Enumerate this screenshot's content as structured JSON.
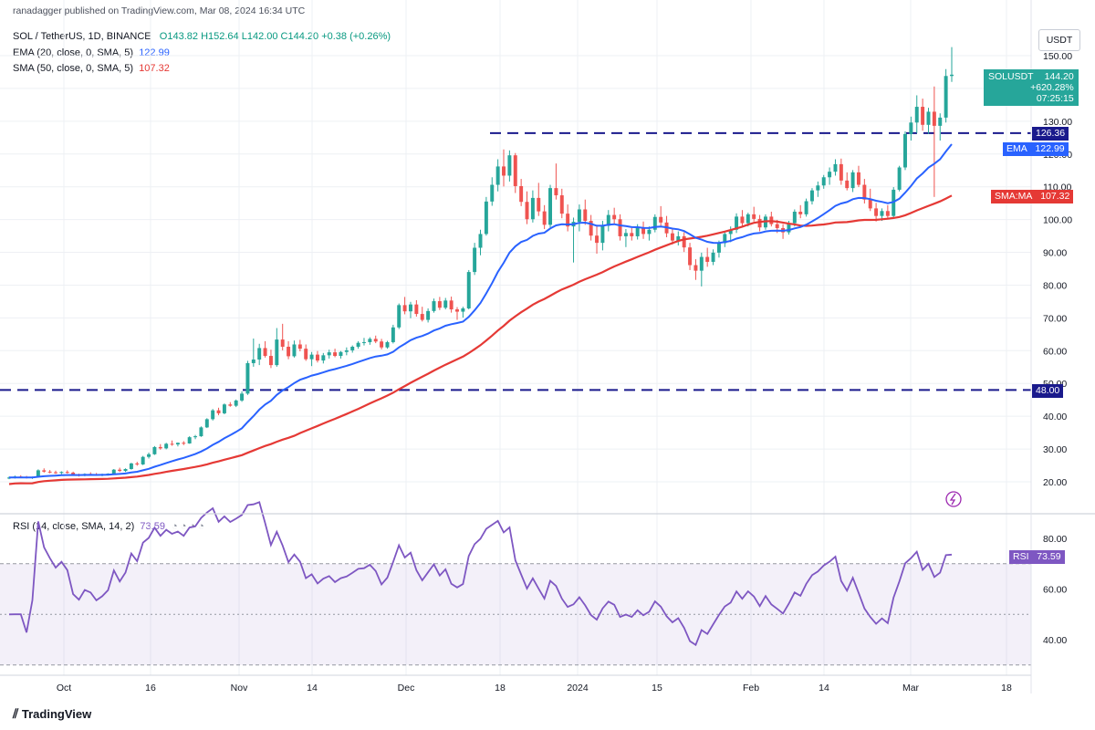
{
  "byline": "ranadagger published on TradingView.com, Mar 08, 2024 16:34 UTC",
  "symbol": {
    "name": "SOL / TetherUS, 1D, BINANCE",
    "o": "O143.82",
    "h": "H152.64",
    "l": "L142.00",
    "c": "C144.20",
    "change": "+0.38 (+0.26%)"
  },
  "ema_legend": {
    "label": "EMA (20, close, 0, SMA, 5)",
    "value": "122.99"
  },
  "sma_legend": {
    "label": "SMA (50, close, 0, SMA, 5)",
    "value": "107.32"
  },
  "rsi_legend": {
    "label": "RSI (14, close, SMA, 14, 2)",
    "value": "73.59"
  },
  "currency": "USDT",
  "price_tag": {
    "symbol": "SOLUSDT",
    "price": "144.20",
    "pct": "+620.28%",
    "countdown": "07:25:15"
  },
  "level_tags": {
    "upper": "126.36",
    "lower": "48.00"
  },
  "ema_tag": {
    "label": "EMA",
    "value": "122.99"
  },
  "sma_tag": {
    "label": "SMA:MA",
    "value": "107.32"
  },
  "rsi_tag": {
    "label": "RSI",
    "value": "73.59"
  },
  "footer": "TradingView",
  "colors": {
    "up": "#26a69a",
    "down": "#ef5350",
    "ema": "#2962ff",
    "sma": "#e53935",
    "rsi": "#7e57c2",
    "level": "#1a1a8c"
  },
  "chart_data": {
    "type": "candlestick",
    "y_ticks": [
      "150.00",
      "140.00",
      "130.00",
      "120.00",
      "110.00",
      "100.00",
      "90.00",
      "80.00",
      "70.00",
      "60.00",
      "50.00",
      "40.00",
      "30.00",
      "20.00"
    ],
    "x_ticks": [
      "Oct",
      "16",
      "Nov",
      "14",
      "Dec",
      "18",
      "2024",
      "15",
      "Feb",
      "14",
      "Mar",
      "18"
    ],
    "horizontal_levels": [
      126.36,
      48.0
    ],
    "rsi_ticks": [
      "80.00",
      "60.00",
      "40.00"
    ],
    "rsi_band": [
      30,
      70
    ],
    "ohlc": [
      [
        21.0,
        21.6,
        20.8,
        21.3
      ],
      [
        21.3,
        21.9,
        21.0,
        21.6
      ],
      [
        21.6,
        22.0,
        21.2,
        21.5
      ],
      [
        21.5,
        21.8,
        21.0,
        21.2
      ],
      [
        21.2,
        21.6,
        20.9,
        21.4
      ],
      [
        21.4,
        23.8,
        21.3,
        23.5
      ],
      [
        23.5,
        24.1,
        22.8,
        23.1
      ],
      [
        23.1,
        23.6,
        22.6,
        22.9
      ],
      [
        22.9,
        23.4,
        22.4,
        22.7
      ],
      [
        22.7,
        23.2,
        22.3,
        23.0
      ],
      [
        23.0,
        23.5,
        22.5,
        22.8
      ],
      [
        22.8,
        23.1,
        21.9,
        22.1
      ],
      [
        22.1,
        22.5,
        21.6,
        21.9
      ],
      [
        21.9,
        22.6,
        21.7,
        22.4
      ],
      [
        22.4,
        22.9,
        22.0,
        22.3
      ],
      [
        22.3,
        22.7,
        21.8,
        22.0
      ],
      [
        22.0,
        22.5,
        21.7,
        22.2
      ],
      [
        22.2,
        22.6,
        21.9,
        22.5
      ],
      [
        22.5,
        23.9,
        22.3,
        23.7
      ],
      [
        23.7,
        24.3,
        23.0,
        23.3
      ],
      [
        23.3,
        24.1,
        23.0,
        23.9
      ],
      [
        23.9,
        25.8,
        23.7,
        25.6
      ],
      [
        25.6,
        26.1,
        24.9,
        25.3
      ],
      [
        25.3,
        27.9,
        25.1,
        27.6
      ],
      [
        27.6,
        28.9,
        27.1,
        28.4
      ],
      [
        28.4,
        30.9,
        28.2,
        30.6
      ],
      [
        30.6,
        31.5,
        29.8,
        30.2
      ],
      [
        30.2,
        31.9,
        29.9,
        31.6
      ],
      [
        31.6,
        32.6,
        31.0,
        31.4
      ],
      [
        31.4,
        32.0,
        30.8,
        31.9
      ],
      [
        31.9,
        32.4,
        31.2,
        31.7
      ],
      [
        31.7,
        33.9,
        31.6,
        33.6
      ],
      [
        33.6,
        34.3,
        33.0,
        33.9
      ],
      [
        33.9,
        36.9,
        33.7,
        36.6
      ],
      [
        36.6,
        39.4,
        36.4,
        39.1
      ],
      [
        39.1,
        42.2,
        38.7,
        41.8
      ],
      [
        41.8,
        42.6,
        40.3,
        40.9
      ],
      [
        40.9,
        43.9,
        40.6,
        43.6
      ],
      [
        43.6,
        44.3,
        42.9,
        43.2
      ],
      [
        43.2,
        45.1,
        42.8,
        44.8
      ],
      [
        44.8,
        47.6,
        44.4,
        46.9
      ],
      [
        46.9,
        56.9,
        46.5,
        56.2
      ],
      [
        56.2,
        63.7,
        55.1,
        57.3
      ],
      [
        57.3,
        62.1,
        55.6,
        60.8
      ],
      [
        60.8,
        62.9,
        57.9,
        58.4
      ],
      [
        58.4,
        60.3,
        54.7,
        55.6
      ],
      [
        55.6,
        66.9,
        55.1,
        63.4
      ],
      [
        63.4,
        68.2,
        60.1,
        61.2
      ],
      [
        61.2,
        62.9,
        57.4,
        58.3
      ],
      [
        58.3,
        63.1,
        57.9,
        61.9
      ],
      [
        61.9,
        63.3,
        59.8,
        60.6
      ],
      [
        60.6,
        61.9,
        56.9,
        57.4
      ],
      [
        57.4,
        59.6,
        55.3,
        58.8
      ],
      [
        58.8,
        59.9,
        56.4,
        57.0
      ],
      [
        57.0,
        59.3,
        56.1,
        58.6
      ],
      [
        58.6,
        60.3,
        57.6,
        59.5
      ],
      [
        59.5,
        60.6,
        58.0,
        58.4
      ],
      [
        58.4,
        59.9,
        57.6,
        59.6
      ],
      [
        59.6,
        61.0,
        58.6,
        60.1
      ],
      [
        60.1,
        61.6,
        59.4,
        61.2
      ],
      [
        61.2,
        62.9,
        60.6,
        62.4
      ],
      [
        62.4,
        63.9,
        61.6,
        62.6
      ],
      [
        62.6,
        64.1,
        61.8,
        63.6
      ],
      [
        63.6,
        64.6,
        62.3,
        62.8
      ],
      [
        62.8,
        63.6,
        60.4,
        61.0
      ],
      [
        61.0,
        63.0,
        60.6,
        62.6
      ],
      [
        62.6,
        67.9,
        62.2,
        67.1
      ],
      [
        67.1,
        74.4,
        66.6,
        73.9
      ],
      [
        73.9,
        76.4,
        71.1,
        72.0
      ],
      [
        72.0,
        74.9,
        69.9,
        74.1
      ],
      [
        74.1,
        75.4,
        70.4,
        71.2
      ],
      [
        71.2,
        73.4,
        68.9,
        69.4
      ],
      [
        69.4,
        72.9,
        68.6,
        72.1
      ],
      [
        72.1,
        75.9,
        71.6,
        75.1
      ],
      [
        75.1,
        76.4,
        72.4,
        73.1
      ],
      [
        73.1,
        76.1,
        72.6,
        75.3
      ],
      [
        75.3,
        76.5,
        71.6,
        72.6
      ],
      [
        72.6,
        73.3,
        69.4,
        71.9
      ],
      [
        71.9,
        73.4,
        70.1,
        72.9
      ],
      [
        72.9,
        84.6,
        72.6,
        84.0
      ],
      [
        84.0,
        92.9,
        83.1,
        91.4
      ],
      [
        91.4,
        96.9,
        89.1,
        95.6
      ],
      [
        95.6,
        106.9,
        95.1,
        105.5
      ],
      [
        105.5,
        112.9,
        104.2,
        110.6
      ],
      [
        110.6,
        118.4,
        108.6,
        116.2
      ],
      [
        116.2,
        121.4,
        110.1,
        113.4
      ],
      [
        113.4,
        121.1,
        111.6,
        119.6
      ],
      [
        119.6,
        120.3,
        108.1,
        110.2
      ],
      [
        110.2,
        112.4,
        104.1,
        105.4
      ],
      [
        105.4,
        108.6,
        98.6,
        100.1
      ],
      [
        100.1,
        108.9,
        99.1,
        106.6
      ],
      [
        106.6,
        111.2,
        101.1,
        102.5
      ],
      [
        102.5,
        104.4,
        97.1,
        98.4
      ],
      [
        98.4,
        110.6,
        97.6,
        109.6
      ],
      [
        109.6,
        117.1,
        106.1,
        107.4
      ],
      [
        107.4,
        109.4,
        100.4,
        101.8
      ],
      [
        101.8,
        104.6,
        96.4,
        97.9
      ],
      [
        97.9,
        100.6,
        86.9,
        99.3
      ],
      [
        99.3,
        104.6,
        96.4,
        103.1
      ],
      [
        103.1,
        106.1,
        98.4,
        99.6
      ],
      [
        99.6,
        101.4,
        93.6,
        95.1
      ],
      [
        95.1,
        98.4,
        89.6,
        92.9
      ],
      [
        92.9,
        99.6,
        90.6,
        98.1
      ],
      [
        98.1,
        102.9,
        96.4,
        101.4
      ],
      [
        101.4,
        103.6,
        98.6,
        100.1
      ],
      [
        100.1,
        101.6,
        93.6,
        94.9
      ],
      [
        94.9,
        97.1,
        91.6,
        95.9
      ],
      [
        95.9,
        97.4,
        93.6,
        94.9
      ],
      [
        94.9,
        98.6,
        93.9,
        97.5
      ],
      [
        97.5,
        99.4,
        94.1,
        95.6
      ],
      [
        95.6,
        97.9,
        93.6,
        96.9
      ],
      [
        96.9,
        101.6,
        96.1,
        100.8
      ],
      [
        100.8,
        104.1,
        97.9,
        99.1
      ],
      [
        99.1,
        101.1,
        94.6,
        95.8
      ],
      [
        95.8,
        97.4,
        92.4,
        93.6
      ],
      [
        93.6,
        96.4,
        92.1,
        94.9
      ],
      [
        94.9,
        96.1,
        90.1,
        91.5
      ],
      [
        91.5,
        92.9,
        84.6,
        86.1
      ],
      [
        86.1,
        87.9,
        81.6,
        84.4
      ],
      [
        84.4,
        89.9,
        79.6,
        88.6
      ],
      [
        88.6,
        91.4,
        85.6,
        87.1
      ],
      [
        87.1,
        90.9,
        86.1,
        89.9
      ],
      [
        89.9,
        93.6,
        88.4,
        92.8
      ],
      [
        92.8,
        96.4,
        91.6,
        95.6
      ],
      [
        95.6,
        97.9,
        93.1,
        96.9
      ],
      [
        96.9,
        101.9,
        95.9,
        100.9
      ],
      [
        100.9,
        102.9,
        97.6,
        98.9
      ],
      [
        98.9,
        102.1,
        97.9,
        101.6
      ],
      [
        101.6,
        103.9,
        99.4,
        100.2
      ],
      [
        100.2,
        101.4,
        96.4,
        97.6
      ],
      [
        97.6,
        101.6,
        96.9,
        100.9
      ],
      [
        100.9,
        102.4,
        97.9,
        98.6
      ],
      [
        98.6,
        99.9,
        95.9,
        97.4
      ],
      [
        97.4,
        98.6,
        94.1,
        96.1
      ],
      [
        96.1,
        99.6,
        95.4,
        98.9
      ],
      [
        98.9,
        103.1,
        97.9,
        102.4
      ],
      [
        102.4,
        104.4,
        100.4,
        101.6
      ],
      [
        101.6,
        106.4,
        100.9,
        105.6
      ],
      [
        105.6,
        109.6,
        104.6,
        108.9
      ],
      [
        108.9,
        111.6,
        106.9,
        110.4
      ],
      [
        110.4,
        113.6,
        109.4,
        112.9
      ],
      [
        112.9,
        115.9,
        110.6,
        114.6
      ],
      [
        114.6,
        118.4,
        113.4,
        116.9
      ],
      [
        116.9,
        118.6,
        110.6,
        111.9
      ],
      [
        111.9,
        114.4,
        108.9,
        109.6
      ],
      [
        109.6,
        115.1,
        108.4,
        114.4
      ],
      [
        114.4,
        116.4,
        109.9,
        110.6
      ],
      [
        110.6,
        112.4,
        104.9,
        106.1
      ],
      [
        106.1,
        109.4,
        102.6,
        103.4
      ],
      [
        103.4,
        105.1,
        99.4,
        101.1
      ],
      [
        101.1,
        103.4,
        99.6,
        102.6
      ],
      [
        102.6,
        104.4,
        100.1,
        101.1
      ],
      [
        101.1,
        109.9,
        100.6,
        109.1
      ],
      [
        109.1,
        116.4,
        108.6,
        115.9
      ],
      [
        115.9,
        126.9,
        115.1,
        126.1
      ],
      [
        126.1,
        131.4,
        124.1,
        129.6
      ],
      [
        129.6,
        137.9,
        126.4,
        134.4
      ],
      [
        134.4,
        136.9,
        127.1,
        128.9
      ],
      [
        128.9,
        134.1,
        126.1,
        132.9
      ],
      [
        132.9,
        140.6,
        106.9,
        128.6
      ],
      [
        128.6,
        132.4,
        124.1,
        131.1
      ],
      [
        131.1,
        145.9,
        129.6,
        143.8
      ],
      [
        143.8,
        152.6,
        142.0,
        144.2
      ]
    ],
    "ema20_end": 122.99,
    "sma50_end": 107.32,
    "rsi_end": 73.59
  }
}
